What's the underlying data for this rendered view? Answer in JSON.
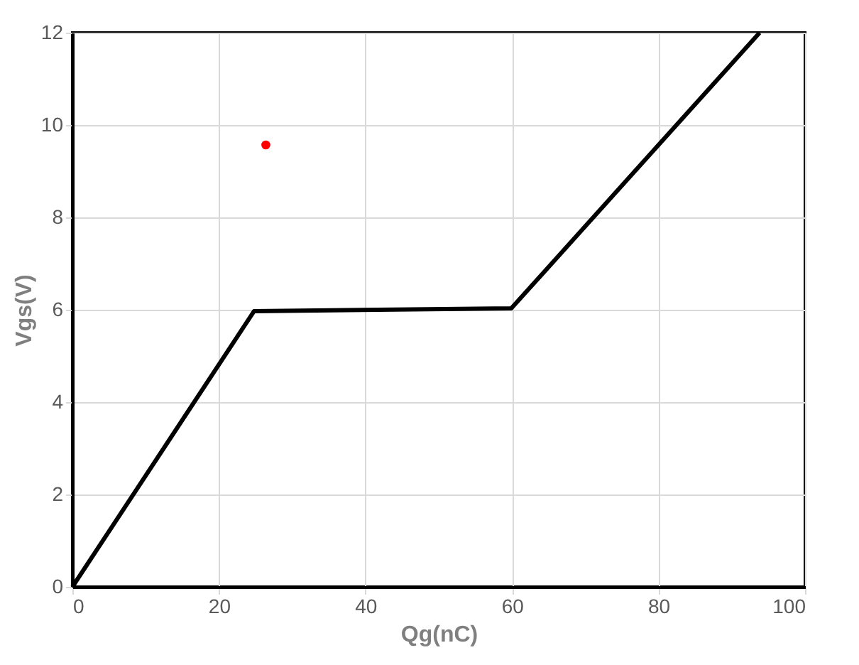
{
  "chart_data": {
    "type": "line",
    "xlabel": "Qg(nC)",
    "ylabel": "Vgs(V)",
    "xlim": [
      0,
      100
    ],
    "ylim": [
      0,
      12
    ],
    "xticks": [
      0,
      20,
      40,
      60,
      80,
      100
    ],
    "yticks": [
      0,
      2,
      4,
      6,
      8,
      10,
      12
    ],
    "grid": true,
    "line_style": "solid",
    "series": [
      {
        "color": "#000000",
        "x": [
          0,
          24.8,
          59.9,
          93.8
        ],
        "values": [
          0,
          5.97,
          6.03,
          12
        ]
      },
      {
        "type": "scatter",
        "color": "#ff0000",
        "x": [
          26.4
        ],
        "values": [
          9.57
        ]
      }
    ]
  }
}
